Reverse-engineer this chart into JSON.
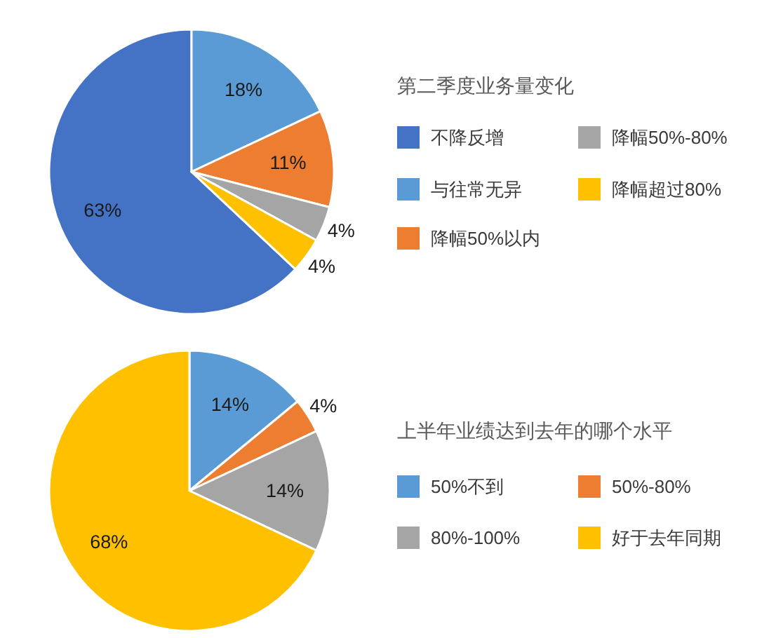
{
  "chart_data": [
    {
      "type": "pie",
      "title": "第二季度业务量变化",
      "categories": [
        "不降反增",
        "与往常无异",
        "降幅50%以内",
        "降幅50%-80%",
        "降幅超过80%"
      ],
      "values": [
        63,
        18,
        11,
        4,
        4
      ],
      "colors": [
        "#4472c4",
        "#5b9bd5",
        "#ed7d31",
        "#a5a5a5",
        "#ffc000"
      ],
      "value_labels": [
        "63%",
        "18%",
        "11%",
        "4%",
        "4%"
      ],
      "legend": "right"
    },
    {
      "type": "pie",
      "title": "上半年业绩达到去年的哪个水平",
      "categories": [
        "50%不到",
        "50%-80%",
        "80%-100%",
        "好于去年同期"
      ],
      "values": [
        14,
        4,
        14,
        68
      ],
      "colors": [
        "#5b9bd5",
        "#ed7d31",
        "#a5a5a5",
        "#ffc000"
      ],
      "value_labels": [
        "14%",
        "4%",
        "14%",
        "68%"
      ],
      "legend": "right"
    }
  ]
}
